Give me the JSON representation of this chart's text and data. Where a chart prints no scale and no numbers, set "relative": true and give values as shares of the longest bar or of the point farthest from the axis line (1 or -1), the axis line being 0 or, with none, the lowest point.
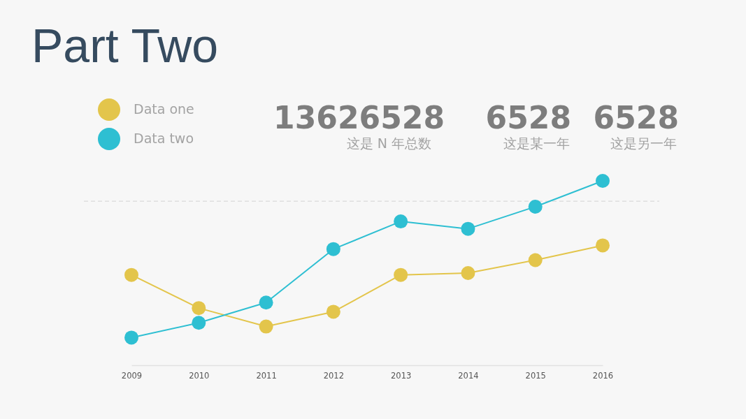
{
  "chart_data": {
    "type": "line",
    "title": "Part Two",
    "categories": [
      "2009",
      "2010",
      "2011",
      "2012",
      "2013",
      "2014",
      "2015",
      "2016"
    ],
    "relative": true,
    "series": [
      {
        "name": "Data one",
        "color": "#e3c54b",
        "values": [
          0.49,
          0.31,
          0.21,
          0.29,
          0.49,
          0.5,
          0.57,
          0.65
        ]
      },
      {
        "name": "Data two",
        "color": "#2ebfd2",
        "values": [
          0.15,
          0.23,
          0.34,
          0.63,
          0.78,
          0.74,
          0.86,
          1
        ]
      }
    ],
    "marker": "circle",
    "line_style": "solid",
    "legend": "top left",
    "ref_lines": [
      {
        "axis": "y",
        "value": 0.89,
        "color": "#dadada",
        "line_style": "dashed"
      }
    ],
    "annotations": [
      "13626528",
      "这是 N 年总数",
      "6528",
      "这是某一年",
      "6528",
      "这是另一年"
    ]
  }
}
